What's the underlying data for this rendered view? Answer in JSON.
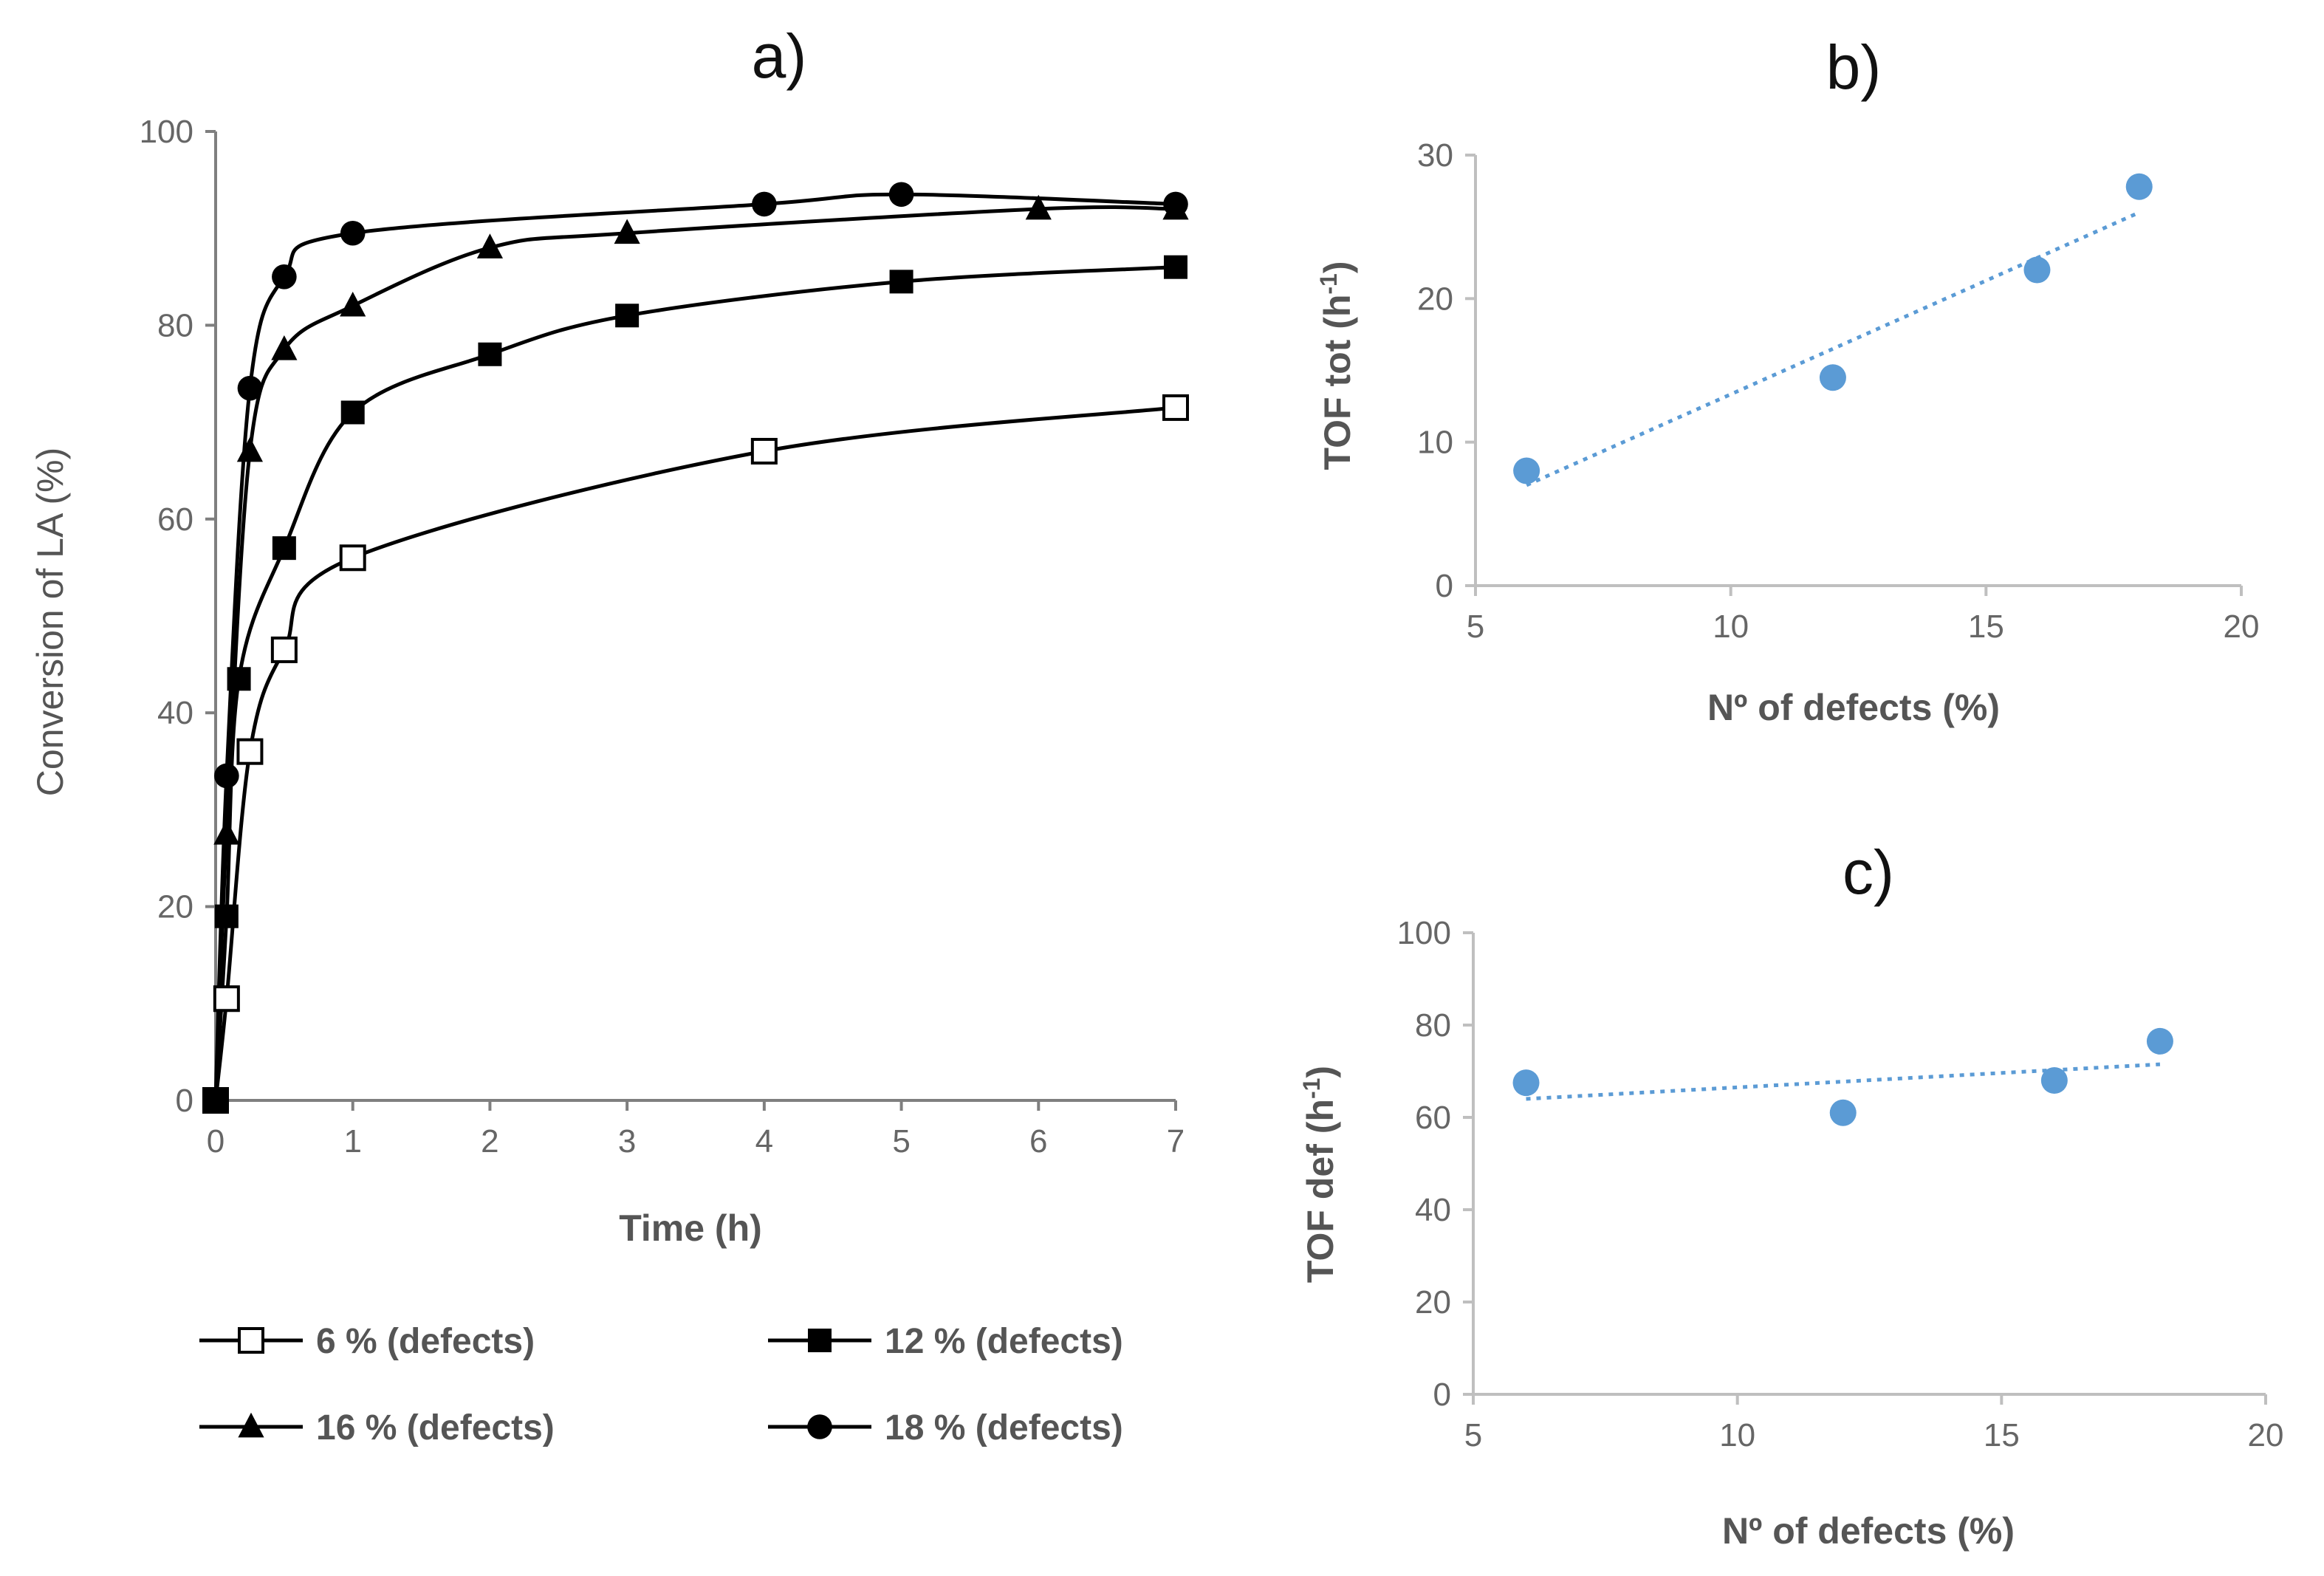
{
  "chart_data": [
    {
      "type": "line",
      "panel_label": "a)",
      "xlabel": "Time (h)",
      "ylabel": "Conversion of LA (%)",
      "xlim": [
        0,
        7
      ],
      "ylim": [
        0,
        100
      ],
      "xticks": [
        0,
        1,
        2,
        3,
        4,
        5,
        6,
        7
      ],
      "yticks": [
        0,
        20,
        40,
        60,
        80,
        100
      ],
      "grid": false,
      "legend_position": "bottom",
      "series": [
        {
          "name": "6 % (defects)",
          "marker": "square-open",
          "x": [
            0,
            0.08,
            0.25,
            0.5,
            1,
            4,
            7
          ],
          "y": [
            0,
            10.5,
            36,
            46.5,
            56,
            67,
            71.5
          ]
        },
        {
          "name": "12 % (defects)",
          "marker": "square",
          "x": [
            0,
            0.08,
            0.17,
            0.5,
            1,
            2,
            3,
            5,
            7
          ],
          "y": [
            0,
            19,
            43.5,
            57,
            71,
            77,
            81,
            84.5,
            86
          ]
        },
        {
          "name": "16 % (defects)",
          "marker": "triangle",
          "x": [
            0,
            0.08,
            0.25,
            0.5,
            1,
            2,
            3,
            6,
            7
          ],
          "y": [
            0,
            27.5,
            67,
            77.5,
            82,
            88,
            89.5,
            92,
            92
          ]
        },
        {
          "name": "18 % (defects)",
          "marker": "circle",
          "x": [
            0,
            0.08,
            0.25,
            0.5,
            1,
            4,
            5,
            7
          ],
          "y": [
            0,
            33.5,
            73.5,
            85,
            89.5,
            92.5,
            93.5,
            92.5
          ]
        }
      ]
    },
    {
      "type": "scatter",
      "panel_label": "b)",
      "xlabel": "Nº of defects (%)",
      "ylabel": "TOF tot",
      "ylabel_unit": "(h",
      "ylabel_unit_sup": "-1",
      "ylabel_unit_close": ")",
      "xlim": [
        5,
        20
      ],
      "ylim": [
        0,
        30
      ],
      "xticks": [
        5,
        10,
        15,
        20
      ],
      "yticks": [
        0,
        10,
        20,
        30
      ],
      "x": [
        6,
        12,
        16,
        18
      ],
      "y": [
        8,
        14.5,
        22,
        27.8
      ],
      "trendline": {
        "type": "linear",
        "x": [
          6,
          18
        ],
        "y": [
          7,
          26
        ]
      },
      "color": "#5b9bd5"
    },
    {
      "type": "scatter",
      "panel_label": "c)",
      "xlabel": "Nº of defects (%)",
      "ylabel": "TOF def",
      "ylabel_unit": "(h",
      "ylabel_unit_sup": "-1",
      "ylabel_unit_close": ")",
      "xlim": [
        5,
        20
      ],
      "ylim": [
        0,
        100
      ],
      "xticks": [
        5,
        10,
        15,
        20
      ],
      "yticks": [
        0,
        20,
        40,
        60,
        80,
        100
      ],
      "x": [
        6,
        12,
        16,
        18
      ],
      "y": [
        67.5,
        61,
        68,
        76.5
      ],
      "trendline": {
        "type": "linear",
        "x": [
          6,
          18
        ],
        "y": [
          64,
          71.5
        ]
      },
      "color": "#5b9bd5"
    }
  ]
}
